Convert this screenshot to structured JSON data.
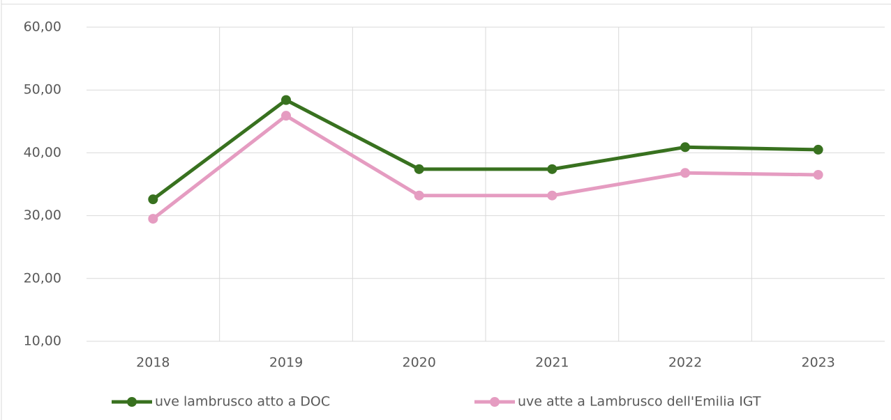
{
  "chart_data": {
    "type": "line",
    "categories": [
      "2018",
      "2019",
      "2020",
      "2021",
      "2022",
      "2023"
    ],
    "series": [
      {
        "name": "uve lambrusco atto a DOC",
        "color": "#38711f",
        "values": [
          32.6,
          48.4,
          37.4,
          37.4,
          40.9,
          40.5
        ]
      },
      {
        "name": "uve atte a Lambrusco dell'Emilia IGT",
        "color": "#e59cc1",
        "values": [
          29.5,
          45.9,
          33.2,
          33.2,
          36.8,
          36.5
        ]
      }
    ],
    "ylim": [
      10,
      60
    ],
    "yticks": [
      {
        "value": 10,
        "label": "10,00"
      },
      {
        "value": 20,
        "label": "20,00"
      },
      {
        "value": 30,
        "label": "30,00"
      },
      {
        "value": 40,
        "label": "40,00"
      },
      {
        "value": 50,
        "label": "50,00"
      },
      {
        "value": 60,
        "label": "60,00"
      }
    ],
    "grid": true,
    "legend": "bottom"
  }
}
